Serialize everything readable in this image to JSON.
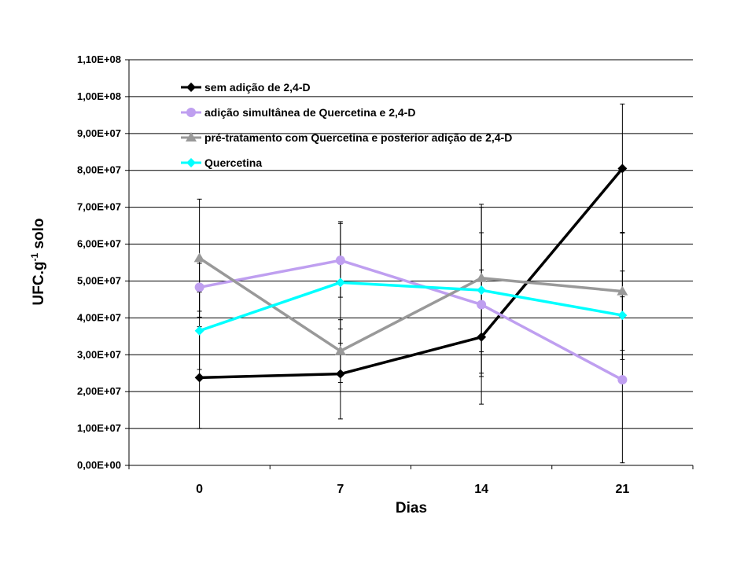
{
  "chart_data": {
    "type": "line",
    "categories": [
      "0",
      "7",
      "14",
      "21"
    ],
    "xlabel": "Dias",
    "ylabel_main": "UFC.g",
    "ylabel_sup": "-1",
    "ylabel_tail": " solo",
    "ylim": [
      0,
      110000000
    ],
    "yticks": [
      {
        "value": 0,
        "label": "0,00E+00"
      },
      {
        "value": 10000000,
        "label": "1,00E+07"
      },
      {
        "value": 20000000,
        "label": "2,00E+07"
      },
      {
        "value": 30000000,
        "label": "3,00E+07"
      },
      {
        "value": 40000000,
        "label": "4,00E+07"
      },
      {
        "value": 50000000,
        "label": "5,00E+07"
      },
      {
        "value": 60000000,
        "label": "6,00E+07"
      },
      {
        "value": 70000000,
        "label": "7,00E+07"
      },
      {
        "value": 80000000,
        "label": "8,00E+07"
      },
      {
        "value": 90000000,
        "label": "9,00E+07"
      },
      {
        "value": 100000000,
        "label": "1,00E+08"
      },
      {
        "value": 110000000,
        "label": "1,10E+08"
      }
    ],
    "grid": "horizontal",
    "legend_position": "top-left",
    "series": [
      {
        "name": "sem adição de 2,4-D",
        "color": "#000000",
        "marker": "diamond",
        "values": [
          23800000,
          24800000,
          34800000,
          80500000
        ],
        "error": [
          13800000,
          12200000,
          18200000,
          17500000
        ]
      },
      {
        "name": "adição simultânea de Quercetina e 2,4-D",
        "color": "#bf9ff0",
        "marker": "circle",
        "values": [
          48300000,
          55600000,
          43600000,
          23200000
        ],
        "error": [
          6500000,
          10000000,
          19500000,
          22500000
        ]
      },
      {
        "name": "pré-tratamento com Quercetina e posterior adição de 2,4-D",
        "color": "#999999",
        "marker": "triangle",
        "values": [
          56200000,
          31000000,
          50800000,
          47200000
        ],
        "error": [
          16000000,
          8500000,
          20000000,
          16000000
        ]
      },
      {
        "name": "Quercetina",
        "color": "#00ffff",
        "marker": "diamond",
        "values": [
          36500000,
          49600000,
          47500000,
          40700000
        ],
        "error": [
          10500000,
          16500000,
          22500000,
          12000000
        ]
      }
    ]
  }
}
